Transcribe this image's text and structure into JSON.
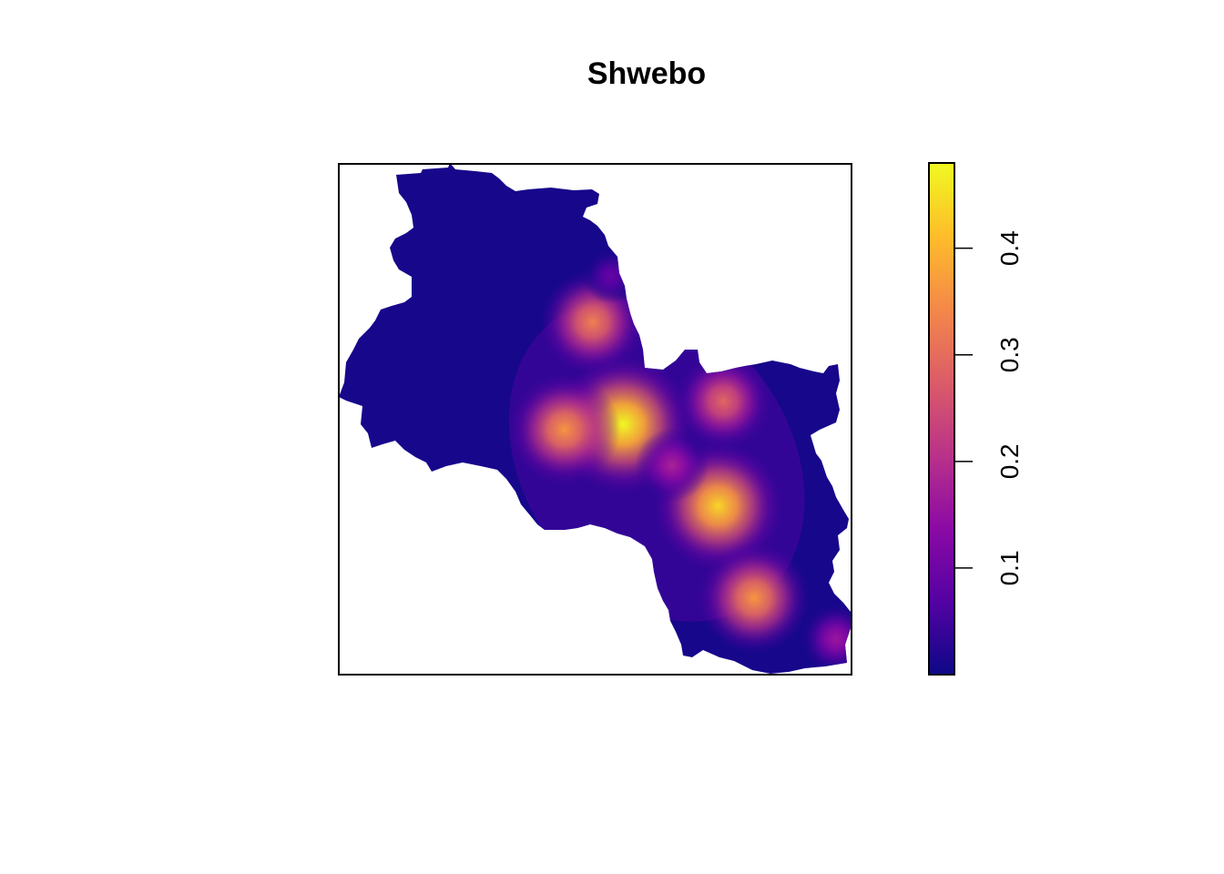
{
  "chart_data": {
    "type": "heatmap",
    "title": "Shwebo",
    "xlabel": "",
    "ylabel": "",
    "axes_shown": false,
    "legend": {
      "placement": "right",
      "type": "continuous colorbar",
      "range": [
        0.0,
        0.48
      ],
      "ticks": [
        0.1,
        0.2,
        0.3,
        0.4
      ],
      "tick_labels": [
        "0.1",
        "0.2",
        "0.3",
        "0.4"
      ],
      "palette": [
        "#0d0887",
        "#5402a3",
        "#8b0aa5",
        "#b93289",
        "#db5c68",
        "#f48849",
        "#febd2a",
        "#f0f921"
      ]
    },
    "hotspots": [
      {
        "label": "central peak",
        "x": 0.555,
        "y": 0.51,
        "value": 0.48
      },
      {
        "label": "south-east centre",
        "x": 0.74,
        "y": 0.67,
        "value": 0.44
      },
      {
        "label": "west of central",
        "x": 0.44,
        "y": 0.52,
        "value": 0.36
      },
      {
        "label": "southern",
        "x": 0.81,
        "y": 0.85,
        "value": 0.36
      },
      {
        "label": "north",
        "x": 0.495,
        "y": 0.31,
        "value": 0.33
      },
      {
        "label": "east",
        "x": 0.75,
        "y": 0.465,
        "value": 0.29
      },
      {
        "label": "south-east edge",
        "x": 0.97,
        "y": 0.93,
        "value": 0.16
      },
      {
        "label": "central corridor",
        "x": 0.65,
        "y": 0.59,
        "value": 0.18
      },
      {
        "label": "north-central",
        "x": 0.53,
        "y": 0.22,
        "value": 0.09
      }
    ],
    "colors": {
      "background": "#ffffff",
      "frame": "#000000",
      "low": "#0d0887",
      "high": "#f0f921"
    }
  }
}
